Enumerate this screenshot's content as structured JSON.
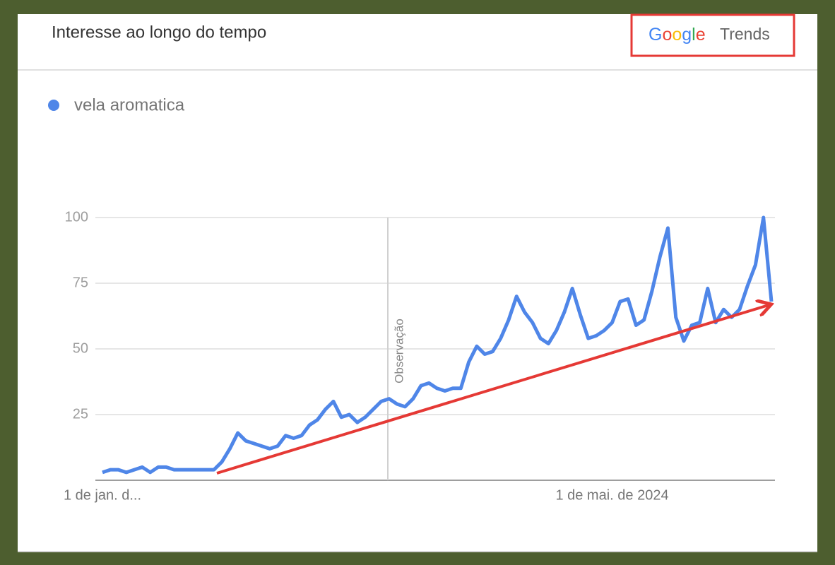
{
  "header": {
    "title": "Interesse ao longo do tempo",
    "logo_google": "Google",
    "logo_trends": "Trends"
  },
  "chart_data": {
    "type": "line",
    "annotation": "Observação",
    "categories": [
      "1 de jan. d...",
      null,
      null,
      null,
      null,
      null,
      null,
      null,
      null,
      null,
      null,
      null,
      null,
      null,
      null,
      null,
      null,
      null,
      null,
      null,
      null,
      null,
      null,
      null,
      null,
      null,
      null,
      null,
      null,
      null,
      null,
      null,
      null,
      null,
      null,
      null,
      null,
      null,
      null,
      null,
      null,
      null,
      null,
      null,
      null,
      null,
      null,
      null,
      null,
      null,
      null,
      null,
      null,
      null,
      null,
      null,
      null,
      null,
      null,
      null,
      null,
      null,
      null,
      null,
      "1 de mai. de 2024",
      null,
      null,
      null,
      null,
      null,
      null,
      null,
      null,
      null,
      null,
      null,
      null,
      null,
      null,
      null,
      null,
      null,
      null,
      null,
      null
    ],
    "series": [
      {
        "name": "vela aromatica",
        "color": "#4f86e8",
        "values": [
          3,
          4,
          4,
          3,
          4,
          5,
          3,
          5,
          5,
          4,
          4,
          4,
          4,
          4,
          4,
          7,
          12,
          18,
          15,
          14,
          13,
          12,
          13,
          17,
          16,
          17,
          21,
          23,
          27,
          30,
          24,
          25,
          22,
          24,
          27,
          30,
          31,
          29,
          28,
          31,
          36,
          37,
          35,
          34,
          35,
          35,
          45,
          51,
          48,
          49,
          54,
          61,
          70,
          64,
          60,
          54,
          52,
          57,
          64,
          73,
          63,
          54,
          55,
          57,
          60,
          68,
          69,
          59,
          61,
          72,
          85,
          96,
          62,
          53,
          59,
          60,
          73,
          60,
          65,
          62,
          65,
          74,
          82,
          100,
          68
        ]
      }
    ],
    "ylim": [
      0,
      100
    ],
    "yticks": [
      25,
      50,
      75,
      100
    ],
    "grid": true
  }
}
